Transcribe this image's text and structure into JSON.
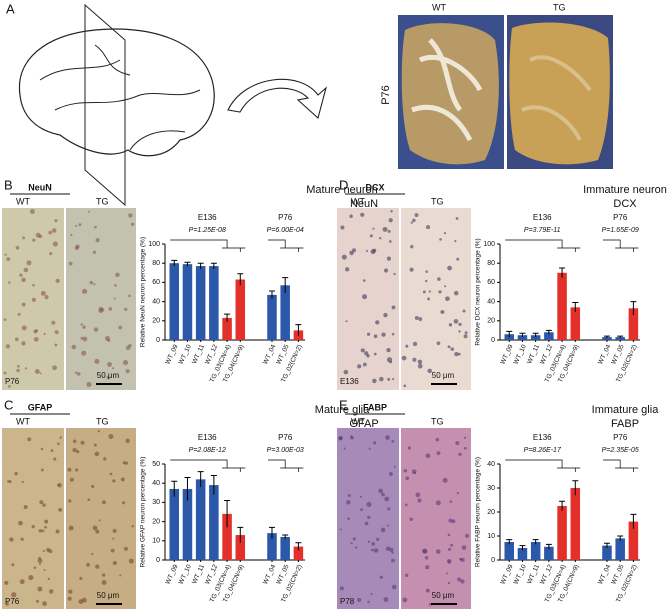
{
  "panel_a": {
    "label": "A",
    "wt": "WT",
    "tg": "TG",
    "age": "P76"
  },
  "micrographs": [
    {
      "label": "B",
      "marker": "NeuN",
      "wt": "WT",
      "tg": "TG",
      "age": "P76",
      "scale": "50 μm"
    },
    {
      "label": "D",
      "marker": "DCX",
      "wt": "WT",
      "tg": "TG",
      "age": "E136",
      "scale": "50 μm"
    },
    {
      "label": "C",
      "marker": "GFAP",
      "wt": "WT",
      "tg": "TG",
      "age": "P76",
      "scale": "50 μm"
    },
    {
      "label": "E",
      "marker": "FABP",
      "wt": "WT",
      "tg": "TG",
      "age": "P78",
      "scale": "50 μm"
    }
  ],
  "chart_data": [
    {
      "type": "bar",
      "title": "Mature neuron",
      "subtitle": "NeuN",
      "y_label": "Relative NeuN neuron percentage (%)",
      "categories": [
        "WT_09",
        "WT_10",
        "WT_11",
        "WT_12",
        "TG_03(CN=4)",
        "TG_04(CN=9)",
        "WT_04",
        "WT_05",
        "TG_02(CN=2)"
      ],
      "values": [
        80,
        79,
        77,
        77,
        23,
        63,
        47,
        57,
        10
      ],
      "errors": [
        3,
        2,
        3,
        3,
        4,
        6,
        4,
        8,
        6
      ],
      "colors": [
        "#2b58a8",
        "#2b58a8",
        "#2b58a8",
        "#2b58a8",
        "#e4302a",
        "#e4302a",
        "#2b58a8",
        "#2b58a8",
        "#e4302a"
      ],
      "ylim": [
        0,
        100
      ],
      "yticks": [
        0,
        20,
        40,
        60,
        80,
        100
      ],
      "groups": [
        {
          "name": "E136",
          "p": "P=1.25E-08"
        },
        {
          "name": "P76",
          "p": "P=6.00E-04"
        }
      ]
    },
    {
      "type": "bar",
      "title": "Immature neuron",
      "subtitle": "DCX",
      "y_label": "Relative DCX neuron percentage (%)",
      "categories": [
        "WT_09",
        "WT_10",
        "WT_11",
        "WT_12",
        "TG_03(CN=4)",
        "TG_04(CN=9)",
        "WT_04",
        "WT_05",
        "TG_02(CN=2)"
      ],
      "values": [
        6,
        5,
        5,
        8,
        70,
        34,
        3,
        3,
        33
      ],
      "errors": [
        3,
        2,
        2,
        2,
        5,
        5,
        1,
        1,
        7
      ],
      "colors": [
        "#2b58a8",
        "#2b58a8",
        "#2b58a8",
        "#2b58a8",
        "#e4302a",
        "#e4302a",
        "#2b58a8",
        "#2b58a8",
        "#e4302a"
      ],
      "ylim": [
        0,
        100
      ],
      "yticks": [
        0,
        20,
        40,
        60,
        80,
        100
      ],
      "groups": [
        {
          "name": "E136",
          "p": "P=3.79E-11"
        },
        {
          "name": "P76",
          "p": "P=1.65E-09"
        }
      ]
    },
    {
      "type": "bar",
      "title": "Mature glia",
      "subtitle": "GFAP",
      "y_label": "Relative GFAP neuron percentage (%)",
      "categories": [
        "WT_09",
        "WT_10",
        "WT_11",
        "WT_12",
        "TG_03(CN=4)",
        "TG_04(CN=9)",
        "WT_04",
        "WT_05",
        "TG_02(CN=2)"
      ],
      "values": [
        37,
        37,
        42,
        39,
        24,
        13,
        14,
        12,
        7
      ],
      "errors": [
        4,
        6,
        4,
        5,
        7,
        4,
        3,
        1,
        2
      ],
      "colors": [
        "#2b58a8",
        "#2b58a8",
        "#2b58a8",
        "#2b58a8",
        "#e4302a",
        "#e4302a",
        "#2b58a8",
        "#2b58a8",
        "#e4302a"
      ],
      "ylim": [
        0,
        50
      ],
      "yticks": [
        0,
        10,
        20,
        30,
        40,
        50
      ],
      "groups": [
        {
          "name": "E136",
          "p": "P=2.08E-12"
        },
        {
          "name": "P76",
          "p": "P=3.00E-03"
        }
      ]
    },
    {
      "type": "bar",
      "title": "Immature glia",
      "subtitle": "FABP",
      "y_label": "Relative FABP neuron percentage (%)",
      "categories": [
        "WT_09",
        "WT_10",
        "WT_11",
        "WT_12",
        "TG_03(CN=4)",
        "TG_04(CN=9)",
        "WT_04",
        "WT_05",
        "TG_02(CN=2)"
      ],
      "values": [
        7.5,
        5,
        7.5,
        5.5,
        22.5,
        30,
        6,
        9,
        16
      ],
      "errors": [
        1,
        1,
        1,
        1,
        2,
        3,
        1,
        1,
        3
      ],
      "colors": [
        "#2b58a8",
        "#2b58a8",
        "#2b58a8",
        "#2b58a8",
        "#e4302a",
        "#e4302a",
        "#2b58a8",
        "#2b58a8",
        "#e4302a"
      ],
      "ylim": [
        0,
        40
      ],
      "yticks": [
        0,
        10,
        20,
        30,
        40
      ],
      "groups": [
        {
          "name": "E136",
          "p": "P=8.26E-17"
        },
        {
          "name": "P76",
          "p": "P=2.35E-05"
        }
      ]
    }
  ]
}
